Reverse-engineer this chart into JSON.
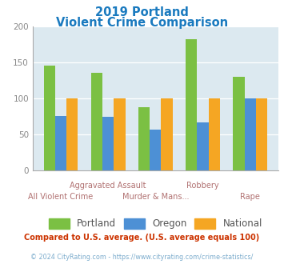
{
  "title_line1": "2019 Portland",
  "title_line2": "Violent Crime Comparison",
  "title_color": "#1a7abf",
  "portland_values": [
    145,
    135,
    88,
    182,
    130
  ],
  "oregon_values": [
    75,
    74,
    57,
    67,
    100
  ],
  "national_values": [
    100,
    100,
    100,
    100,
    100
  ],
  "portland_color": "#7bc043",
  "oregon_color": "#4d90d5",
  "national_color": "#f5a623",
  "background_color": "#dce9f0",
  "ylim": [
    0,
    200
  ],
  "yticks": [
    0,
    50,
    100,
    150,
    200
  ],
  "legend_labels": [
    "Portland",
    "Oregon",
    "National"
  ],
  "xtick_top": [
    "",
    "Aggravated Assault",
    "",
    "Robbery",
    ""
  ],
  "xtick_bot": [
    "All Violent Crime",
    "",
    "Murder & Mans...",
    "",
    "Rape"
  ],
  "footer_text": "Compared to U.S. average. (U.S. average equals 100)",
  "footer_color": "#cc3300",
  "copyright_text": "© 2024 CityRating.com - https://www.cityrating.com/crime-statistics/",
  "copyright_color": "#7aabcc",
  "bar_width": 0.24
}
